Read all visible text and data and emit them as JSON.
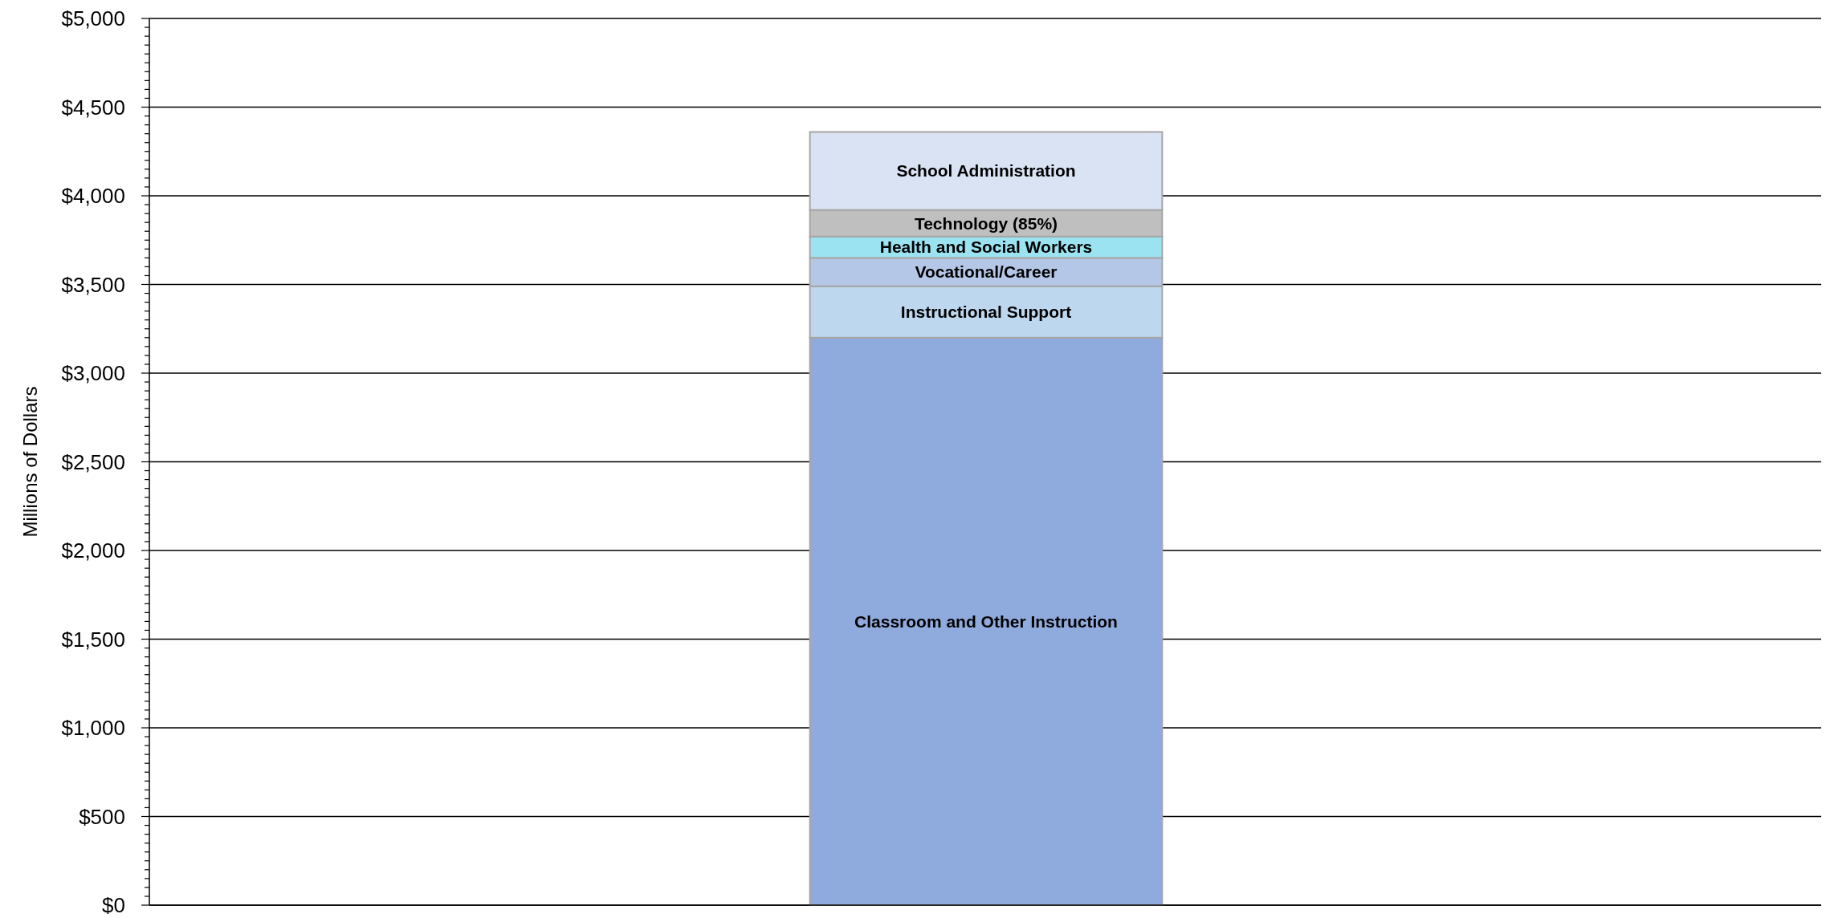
{
  "chart_data": {
    "type": "bar",
    "stacked": true,
    "categories": [
      null
    ],
    "ylabel": "Millions of Dollars",
    "ylim": [
      0,
      5000
    ],
    "yticks": [
      {
        "value": 0,
        "label": "$0"
      },
      {
        "value": 50,
        "label": null
      },
      {
        "value": 100,
        "label": null
      },
      {
        "value": 150,
        "label": null
      },
      {
        "value": 200,
        "label": null
      },
      {
        "value": 250,
        "label": null
      },
      {
        "value": 300,
        "label": null
      },
      {
        "value": 350,
        "label": null
      },
      {
        "value": 400,
        "label": null
      },
      {
        "value": 450,
        "label": null
      },
      {
        "value": 500,
        "label": "$500"
      },
      {
        "value": 550,
        "label": null
      },
      {
        "value": 600,
        "label": null
      },
      {
        "value": 650,
        "label": null
      },
      {
        "value": 700,
        "label": null
      },
      {
        "value": 750,
        "label": null
      },
      {
        "value": 800,
        "label": null
      },
      {
        "value": 850,
        "label": null
      },
      {
        "value": 900,
        "label": null
      },
      {
        "value": 950,
        "label": null
      },
      {
        "value": 1000,
        "label": "$1,000"
      },
      {
        "value": 1050,
        "label": null
      },
      {
        "value": 1100,
        "label": null
      },
      {
        "value": 1150,
        "label": null
      },
      {
        "value": 1200,
        "label": null
      },
      {
        "value": 1250,
        "label": null
      },
      {
        "value": 1300,
        "label": null
      },
      {
        "value": 1350,
        "label": null
      },
      {
        "value": 1400,
        "label": null
      },
      {
        "value": 1450,
        "label": null
      },
      {
        "value": 1500,
        "label": "$1,500"
      },
      {
        "value": 1550,
        "label": null
      },
      {
        "value": 1600,
        "label": null
      },
      {
        "value": 1650,
        "label": null
      },
      {
        "value": 1700,
        "label": null
      },
      {
        "value": 1750,
        "label": null
      },
      {
        "value": 1800,
        "label": null
      },
      {
        "value": 1850,
        "label": null
      },
      {
        "value": 1900,
        "label": null
      },
      {
        "value": 1950,
        "label": null
      },
      {
        "value": 2000,
        "label": "$2,000"
      },
      {
        "value": 2050,
        "label": null
      },
      {
        "value": 2100,
        "label": null
      },
      {
        "value": 2150,
        "label": null
      },
      {
        "value": 2200,
        "label": null
      },
      {
        "value": 2250,
        "label": null
      },
      {
        "value": 2300,
        "label": null
      },
      {
        "value": 2350,
        "label": null
      },
      {
        "value": 2400,
        "label": null
      },
      {
        "value": 2450,
        "label": null
      },
      {
        "value": 2500,
        "label": "$2,500"
      },
      {
        "value": 2550,
        "label": null
      },
      {
        "value": 2600,
        "label": null
      },
      {
        "value": 2650,
        "label": null
      },
      {
        "value": 2700,
        "label": null
      },
      {
        "value": 2750,
        "label": null
      },
      {
        "value": 2800,
        "label": null
      },
      {
        "value": 2850,
        "label": null
      },
      {
        "value": 2900,
        "label": null
      },
      {
        "value": 2950,
        "label": null
      },
      {
        "value": 3000,
        "label": "$3,000"
      },
      {
        "value": 3050,
        "label": null
      },
      {
        "value": 3100,
        "label": null
      },
      {
        "value": 3150,
        "label": null
      },
      {
        "value": 3200,
        "label": null
      },
      {
        "value": 3250,
        "label": null
      },
      {
        "value": 3300,
        "label": null
      },
      {
        "value": 3350,
        "label": null
      },
      {
        "value": 3400,
        "label": null
      },
      {
        "value": 3450,
        "label": null
      },
      {
        "value": 3500,
        "label": "$3,500"
      },
      {
        "value": 3550,
        "label": null
      },
      {
        "value": 3600,
        "label": null
      },
      {
        "value": 3650,
        "label": null
      },
      {
        "value": 3700,
        "label": null
      },
      {
        "value": 3750,
        "label": null
      },
      {
        "value": 3800,
        "label": null
      },
      {
        "value": 3850,
        "label": null
      },
      {
        "value": 3900,
        "label": null
      },
      {
        "value": 3950,
        "label": null
      },
      {
        "value": 4000,
        "label": "$4,000"
      },
      {
        "value": 4050,
        "label": null
      },
      {
        "value": 4100,
        "label": null
      },
      {
        "value": 4150,
        "label": null
      },
      {
        "value": 4200,
        "label": null
      },
      {
        "value": 4250,
        "label": null
      },
      {
        "value": 4300,
        "label": null
      },
      {
        "value": 4350,
        "label": null
      },
      {
        "value": 4400,
        "label": null
      },
      {
        "value": 4450,
        "label": null
      },
      {
        "value": 4500,
        "label": "$4,500"
      },
      {
        "value": 4550,
        "label": null
      },
      {
        "value": 4600,
        "label": null
      },
      {
        "value": 4650,
        "label": null
      },
      {
        "value": 4700,
        "label": null
      },
      {
        "value": 4750,
        "label": null
      },
      {
        "value": 4800,
        "label": null
      },
      {
        "value": 4850,
        "label": null
      },
      {
        "value": 4900,
        "label": null
      },
      {
        "value": 4950,
        "label": null
      },
      {
        "value": 5000,
        "label": "$5,000"
      }
    ],
    "grid": "y",
    "legend": false,
    "series": [
      {
        "name": "Classroom and Other Instruction",
        "color": "#8faadc",
        "values": [
          3200
        ]
      },
      {
        "name": "Instructional Support",
        "color": "#bdd7ee",
        "values": [
          290
        ]
      },
      {
        "name": "Vocational/Career",
        "color": "#b4c7e7",
        "values": [
          160
        ]
      },
      {
        "name": "Health and Social Workers",
        "color": "#9be3f0",
        "values": [
          120
        ]
      },
      {
        "name": "Technology (85%)",
        "color": "#bfbfbf",
        "values": [
          150
        ]
      },
      {
        "name": "School Administration",
        "color": "#dae3f3",
        "values": [
          440
        ]
      }
    ]
  }
}
